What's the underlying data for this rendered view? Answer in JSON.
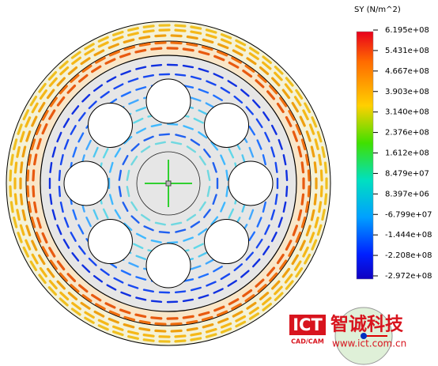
{
  "legend": {
    "title": "SY (N/m^2)",
    "labels": [
      "6.195e+08",
      "5.431e+08",
      "4.667e+08",
      "3.903e+08",
      "3.140e+08",
      "2.376e+08",
      "1.612e+08",
      "8.479e+07",
      "8.397e+06",
      "-6.799e+07",
      "-1.444e+08",
      "-2.208e+08",
      "-2.972e+08"
    ]
  },
  "watermark": {
    "logo": "ICT",
    "logo_sub": "CAD/CAM",
    "brand": "智诚科技",
    "url": "www.ict.com.cn"
  }
}
